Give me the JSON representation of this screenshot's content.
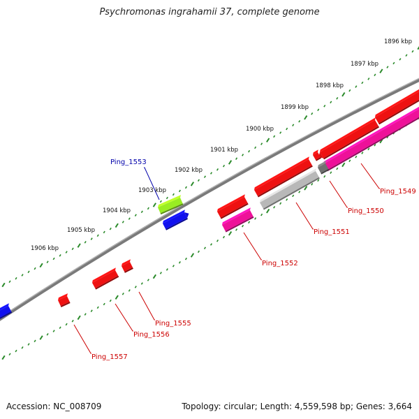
{
  "title": "Psychromonas ingrahamii 37, complete genome",
  "footer": {
    "accession": "Accession: NC_008709",
    "summary": "Topology: circular; Length: 4,559,598 bp; Genes: 3,664"
  },
  "scale_labels": [
    "1896 kbp",
    "1897 kbp",
    "1898 kbp",
    "1899 kbp",
    "1900 kbp",
    "1901 kbp",
    "1902 kbp",
    "1903 kbp",
    "1904 kbp",
    "1905 kbp",
    "1906 kbp"
  ],
  "gene_labels": [
    {
      "text": "Ping_1549",
      "color": "#cc0000"
    },
    {
      "text": "Ping_1550",
      "color": "#cc0000"
    },
    {
      "text": "Ping_1551",
      "color": "#cc0000"
    },
    {
      "text": "Ping_1552",
      "color": "#cc0000"
    },
    {
      "text": "Ping_1553",
      "color": "#0000aa"
    },
    {
      "text": "Ping_1555",
      "color": "#cc0000"
    },
    {
      "text": "Ping_1556",
      "color": "#cc0000"
    },
    {
      "text": "Ping_1557",
      "color": "#cc0000"
    }
  ],
  "colors": {
    "backbone": "#7a7a7a",
    "tick_track": "#2a8a2a",
    "cds_red": "#ee1111",
    "cds_magenta": "#ee1199",
    "cds_gray": "#b8b8b8",
    "cds_blue": "#1111ee",
    "cds_green": "#99ee22",
    "label_red": "#cc0000",
    "label_blue": "#0000aa"
  }
}
